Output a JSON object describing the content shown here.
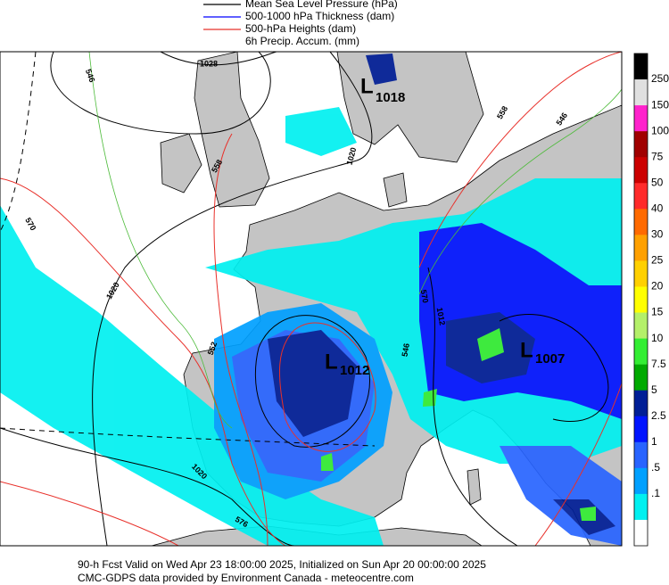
{
  "legend": {
    "items": [
      {
        "label": "Mean Sea Level Pressure (hPa)",
        "color": "#000000"
      },
      {
        "label": "500-1000 hPa Thickness (dam)",
        "color": "#0000ff"
      },
      {
        "label": "500-hPa Heights (dam)",
        "color": "#e8302a"
      }
    ],
    "precip_label": "6h Precip. Accum. (mm)"
  },
  "colorbar": {
    "colors": [
      "#000000",
      "#e0e0e0",
      "#ff22cc",
      "#a00000",
      "#cc0000",
      "#ff2a2a",
      "#ff6a00",
      "#ffa000",
      "#ffd000",
      "#ffff00",
      "#b4f06a",
      "#33ee33",
      "#00aa00",
      "#001e96",
      "#0014ff",
      "#2864ff",
      "#00a0ff",
      "#00f0f0",
      "#ffffff"
    ],
    "labels": [
      "250",
      "150",
      "100",
      "75",
      "50",
      "40",
      "30",
      "25",
      "20",
      "15",
      "10",
      "7.5",
      "5",
      "2.5",
      "1",
      ".5",
      ".1"
    ]
  },
  "pressure_centers": [
    {
      "symbol": "L",
      "value": "1018"
    },
    {
      "symbol": "L",
      "value": "1012"
    },
    {
      "symbol": "L",
      "value": "1007"
    }
  ],
  "contour_labels": [
    "546",
    "1028",
    "558",
    "570",
    "1020",
    "1020",
    "558",
    "546",
    "1012",
    "570",
    "552",
    "546",
    "1020",
    "576",
    "1020"
  ],
  "footer": {
    "line1": "90-h Fcst Valid on Wed Apr 23 18:00:00 2025, Initialized on Sun Apr 20 00:00:00 2025",
    "line2": "CMC-GDPS data provided by Environment Canada - meteocentre.com"
  }
}
